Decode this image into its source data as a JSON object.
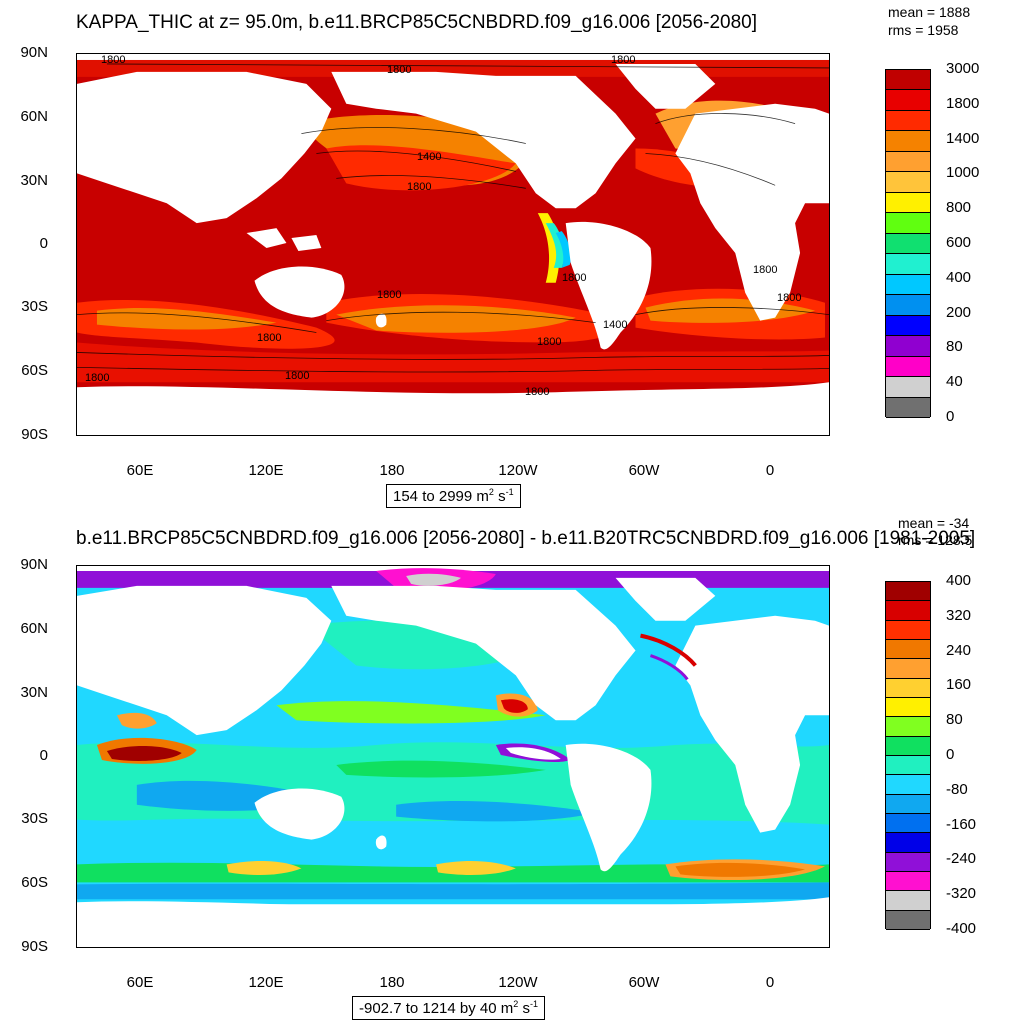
{
  "panel1": {
    "title": "KAPPA_THIC at z=  95.0m, b.e11.BRCP85C5CNBDRD.f09_g16.006 [2056-2080]",
    "mean": "mean = 1888",
    "rms": "rms = 1958",
    "range": "154 to 2999 m",
    "range_sup": "2",
    "range_unit2": " s",
    "range_sup2": "-1",
    "colorbar_labels": [
      "3000",
      "1800",
      "1400",
      "1000",
      "800",
      "600",
      "400",
      "200",
      "80",
      "40",
      "0"
    ],
    "colorbar_colors": [
      "#c00000",
      "#e80000",
      "#ff2a00",
      "#f58200",
      "#ffa030",
      "#ffc43a",
      "#fff000",
      "#60ff10",
      "#10e070",
      "#20f0d0",
      "#00c8ff",
      "#0090f0",
      "#0000ff",
      "#9000d0",
      "#ff00c8",
      "#d0d0d0",
      "#707070"
    ],
    "contour_labels": [
      "1800",
      "1800",
      "1800",
      "1400",
      "1800",
      "1800",
      "1800",
      "1800",
      "1800",
      "1800",
      "1800",
      "1400",
      "1800",
      "1800",
      "1800"
    ]
  },
  "panel2": {
    "title": "b.e11.BRCP85C5CNBDRD.f09_g16.006 [2056-2080] - b.e11.B20TRC5CNBDRD.f09_g16.006 [1981-2005]",
    "mean": "mean = -34",
    "rms": "rms = 128.5",
    "range": "-902.7 to 1214 by 40 m",
    "range_sup": "2",
    "range_unit2": " s",
    "range_sup2": "-1",
    "colorbar_labels": [
      "400",
      "320",
      "240",
      "160",
      "80",
      "0",
      "-80",
      "-160",
      "-240",
      "-320",
      "-400"
    ],
    "colorbar_colors": [
      "#a00000",
      "#d80000",
      "#ff3000",
      "#f07800",
      "#ffa030",
      "#ffd030",
      "#fff000",
      "#80ff20",
      "#10e060",
      "#20f0c0",
      "#20d8ff",
      "#10a8f0",
      "#0070f0",
      "#0000e8",
      "#9010d8",
      "#ff10d0",
      "#d0d0d0",
      "#707070"
    ]
  },
  "lat_labels": [
    "90N",
    "60N",
    "30N",
    "0",
    "30S",
    "60S",
    "90S"
  ],
  "lon_labels": [
    "60E",
    "120E",
    "180",
    "120W",
    "60W",
    "0"
  ]
}
